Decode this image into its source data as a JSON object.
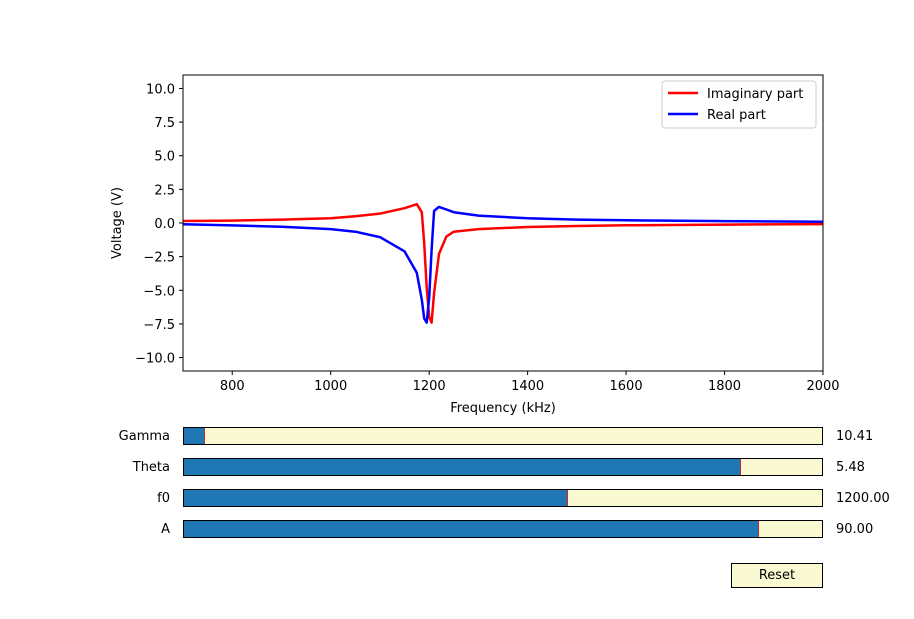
{
  "chart_data": {
    "type": "line",
    "title": "",
    "xlabel": "Frequency (kHz)",
    "ylabel": "Voltage (V)",
    "xlim": [
      700,
      2000
    ],
    "ylim": [
      -11,
      11
    ],
    "xticks": [
      800,
      1000,
      1200,
      1400,
      1600,
      1800,
      2000
    ],
    "yticks": [
      -10.0,
      -7.5,
      -5.0,
      -2.5,
      0.0,
      2.5,
      5.0,
      7.5,
      10.0
    ],
    "grid": false,
    "legend_position": "top-right",
    "series": [
      {
        "name": "Imaginary part",
        "color": "#ff0000",
        "x": [
          700,
          800,
          900,
          1000,
          1050,
          1100,
          1150,
          1175,
          1185,
          1190,
          1195,
          1200,
          1205,
          1210,
          1220,
          1235,
          1250,
          1300,
          1400,
          1500,
          1600,
          1800,
          2000
        ],
        "y": [
          0.15,
          0.18,
          0.25,
          0.35,
          0.5,
          0.7,
          1.1,
          1.4,
          0.8,
          -1.5,
          -4.8,
          -7.0,
          -7.4,
          -5.2,
          -2.3,
          -1.0,
          -0.65,
          -0.45,
          -0.3,
          -0.22,
          -0.17,
          -0.12,
          -0.08
        ]
      },
      {
        "name": "Real part",
        "color": "#0000ff",
        "x": [
          700,
          800,
          900,
          1000,
          1050,
          1100,
          1150,
          1175,
          1185,
          1190,
          1195,
          1200,
          1205,
          1210,
          1220,
          1235,
          1250,
          1300,
          1400,
          1500,
          1600,
          1800,
          2000
        ],
        "y": [
          -0.1,
          -0.18,
          -0.28,
          -0.45,
          -0.65,
          -1.05,
          -2.1,
          -3.7,
          -5.7,
          -7.1,
          -7.4,
          -5.5,
          -2.0,
          0.9,
          1.2,
          1.0,
          0.8,
          0.55,
          0.35,
          0.25,
          0.2,
          0.14,
          0.1
        ]
      }
    ]
  },
  "sliders": [
    {
      "label": "Gamma",
      "value_text": "10.41",
      "fraction": 0.032
    },
    {
      "label": "Theta",
      "value_text": "5.48",
      "fraction": 0.872
    },
    {
      "label": "f0",
      "value_text": "1200.00",
      "fraction": 0.6
    },
    {
      "label": "A",
      "value_text": "90.00",
      "fraction": 0.9
    }
  ],
  "reset_label": "Reset"
}
